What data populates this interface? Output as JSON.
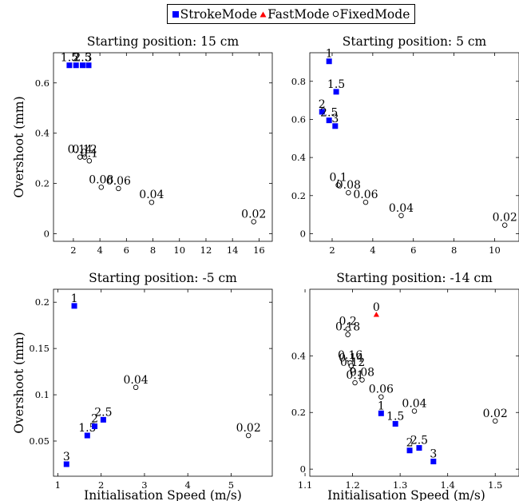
{
  "legend": {
    "items": [
      {
        "label": "StrokeMode",
        "color": "#0000ff",
        "marker": "square"
      },
      {
        "label": "FastMode",
        "color": "#ff0000",
        "marker": "triangle"
      },
      {
        "label": "FixedMode",
        "color": "#000000",
        "marker": "circle"
      }
    ]
  },
  "chart_data": [
    {
      "type": "scatter",
      "title": "Starting position: 15 cm",
      "xlabel": "",
      "ylabel": "Overshoot (mm)",
      "xlim": [
        0.5,
        17
      ],
      "ylim": [
        -0.03,
        0.72
      ],
      "xticks": [
        "2",
        "4",
        "6",
        "8",
        "10",
        "12",
        "14",
        "16"
      ],
      "yticks": [
        "0",
        "0.2",
        "0.4",
        "0.6"
      ],
      "series": [
        {
          "name": "StrokeMode",
          "points": [
            {
              "x": 1.7,
              "y": 0.67,
              "label": "1.5"
            },
            {
              "x": 2.2,
              "y": 0.67,
              "label": "2"
            },
            {
              "x": 2.7,
              "y": 0.67,
              "label": "2.5"
            },
            {
              "x": 3.15,
              "y": 0.67,
              "label": "3"
            }
          ]
        },
        {
          "name": "FixedMode",
          "points": [
            {
              "x": 2.5,
              "y": 0.305,
              "label": "0.14"
            },
            {
              "x": 2.85,
              "y": 0.305,
              "label": "0.12"
            },
            {
              "x": 3.2,
              "y": 0.29,
              "label": "0.1"
            },
            {
              "x": 4.1,
              "y": 0.185,
              "label": "0.08"
            },
            {
              "x": 5.4,
              "y": 0.18,
              "label": "0.06"
            },
            {
              "x": 7.9,
              "y": 0.125,
              "label": "0.04"
            },
            {
              "x": 15.6,
              "y": 0.048,
              "label": "0.02"
            }
          ]
        }
      ]
    },
    {
      "type": "scatter",
      "title": "Starting position: 5 cm",
      "xlabel": "",
      "ylabel": "",
      "xlim": [
        0.9,
        11.2
      ],
      "ylim": [
        -0.04,
        0.95
      ],
      "xticks": [
        "2",
        "4",
        "6",
        "8",
        "10"
      ],
      "yticks": [
        "0",
        "0.2",
        "0.4",
        "0.6",
        "0.8"
      ],
      "series": [
        {
          "name": "StrokeMode",
          "points": [
            {
              "x": 1.85,
              "y": 0.905,
              "label": "1"
            },
            {
              "x": 2.2,
              "y": 0.745,
              "label": "1.5"
            },
            {
              "x": 1.5,
              "y": 0.64,
              "label": "2"
            },
            {
              "x": 1.85,
              "y": 0.595,
              "label": "2.5"
            },
            {
              "x": 2.15,
              "y": 0.565,
              "label": "3"
            }
          ]
        },
        {
          "name": "FixedMode",
          "points": [
            {
              "x": 2.3,
              "y": 0.255,
              "label": "0.1"
            },
            {
              "x": 2.8,
              "y": 0.215,
              "label": "0.08"
            },
            {
              "x": 3.65,
              "y": 0.165,
              "label": "0.06"
            },
            {
              "x": 5.4,
              "y": 0.095,
              "label": "0.04"
            },
            {
              "x": 10.5,
              "y": 0.045,
              "label": "0.02"
            }
          ]
        }
      ]
    },
    {
      "type": "scatter",
      "title": "Starting position: -5 cm",
      "xlabel": "Initialisation Speed (m/s)",
      "ylabel": "Overshoot (mm)",
      "xlim": [
        0.9,
        5.95
      ],
      "ylim": [
        0.012,
        0.214
      ],
      "xticks": [
        "1",
        "2",
        "3",
        "4",
        "5"
      ],
      "yticks": [
        "0.05",
        "0.1",
        "0.15",
        "0.2"
      ],
      "series": [
        {
          "name": "StrokeMode",
          "points": [
            {
              "x": 1.38,
              "y": 0.196,
              "label": "1"
            },
            {
              "x": 1.68,
              "y": 0.056,
              "label": "1.5"
            },
            {
              "x": 1.85,
              "y": 0.066,
              "label": "2"
            },
            {
              "x": 2.05,
              "y": 0.073,
              "label": "2.5"
            },
            {
              "x": 1.2,
              "y": 0.025,
              "label": "3"
            }
          ]
        },
        {
          "name": "FixedMode",
          "points": [
            {
              "x": 2.8,
              "y": 0.108,
              "label": "0.04"
            },
            {
              "x": 5.4,
              "y": 0.056,
              "label": "0.02"
            }
          ]
        }
      ]
    },
    {
      "type": "scatter",
      "title": "Starting position: -14 cm",
      "xlabel": "Initialisation Speed (m/s)",
      "ylabel": "",
      "xlim": [
        1.11,
        1.55
      ],
      "ylim": [
        -0.025,
        0.635
      ],
      "xticks": [
        "1.1",
        "1.2",
        "1.3",
        "1.4",
        "1.5"
      ],
      "yticks": [
        "0",
        "0.2",
        "0.4"
      ],
      "series": [
        {
          "name": "StrokeMode",
          "points": [
            {
              "x": 1.26,
              "y": 0.197,
              "label": "1"
            },
            {
              "x": 1.29,
              "y": 0.16,
              "label": "1.5"
            },
            {
              "x": 1.32,
              "y": 0.066,
              "label": "2"
            },
            {
              "x": 1.34,
              "y": 0.075,
              "label": "2.5"
            },
            {
              "x": 1.37,
              "y": 0.027,
              "label": "3"
            }
          ]
        },
        {
          "name": "FastMode",
          "points": [
            {
              "x": 1.25,
              "y": 0.545,
              "label": "0"
            }
          ]
        },
        {
          "name": "FixedMode",
          "points": [
            {
              "x": 1.19,
              "y": 0.475,
              "label": "0.18"
            },
            {
              "x": 1.19,
              "y": 0.495,
              "label": "0.2"
            },
            {
              "x": 1.195,
              "y": 0.375,
              "label": "0.16"
            },
            {
              "x": 1.197,
              "y": 0.365,
              "label": "0.14"
            },
            {
              "x": 1.2,
              "y": 0.35,
              "label": "0.12"
            },
            {
              "x": 1.205,
              "y": 0.305,
              "label": "0.1"
            },
            {
              "x": 1.22,
              "y": 0.315,
              "label": "0.08"
            },
            {
              "x": 1.26,
              "y": 0.255,
              "label": "0.06"
            },
            {
              "x": 1.33,
              "y": 0.205,
              "label": "0.04"
            },
            {
              "x": 1.5,
              "y": 0.17,
              "label": "0.02"
            }
          ]
        }
      ]
    }
  ]
}
